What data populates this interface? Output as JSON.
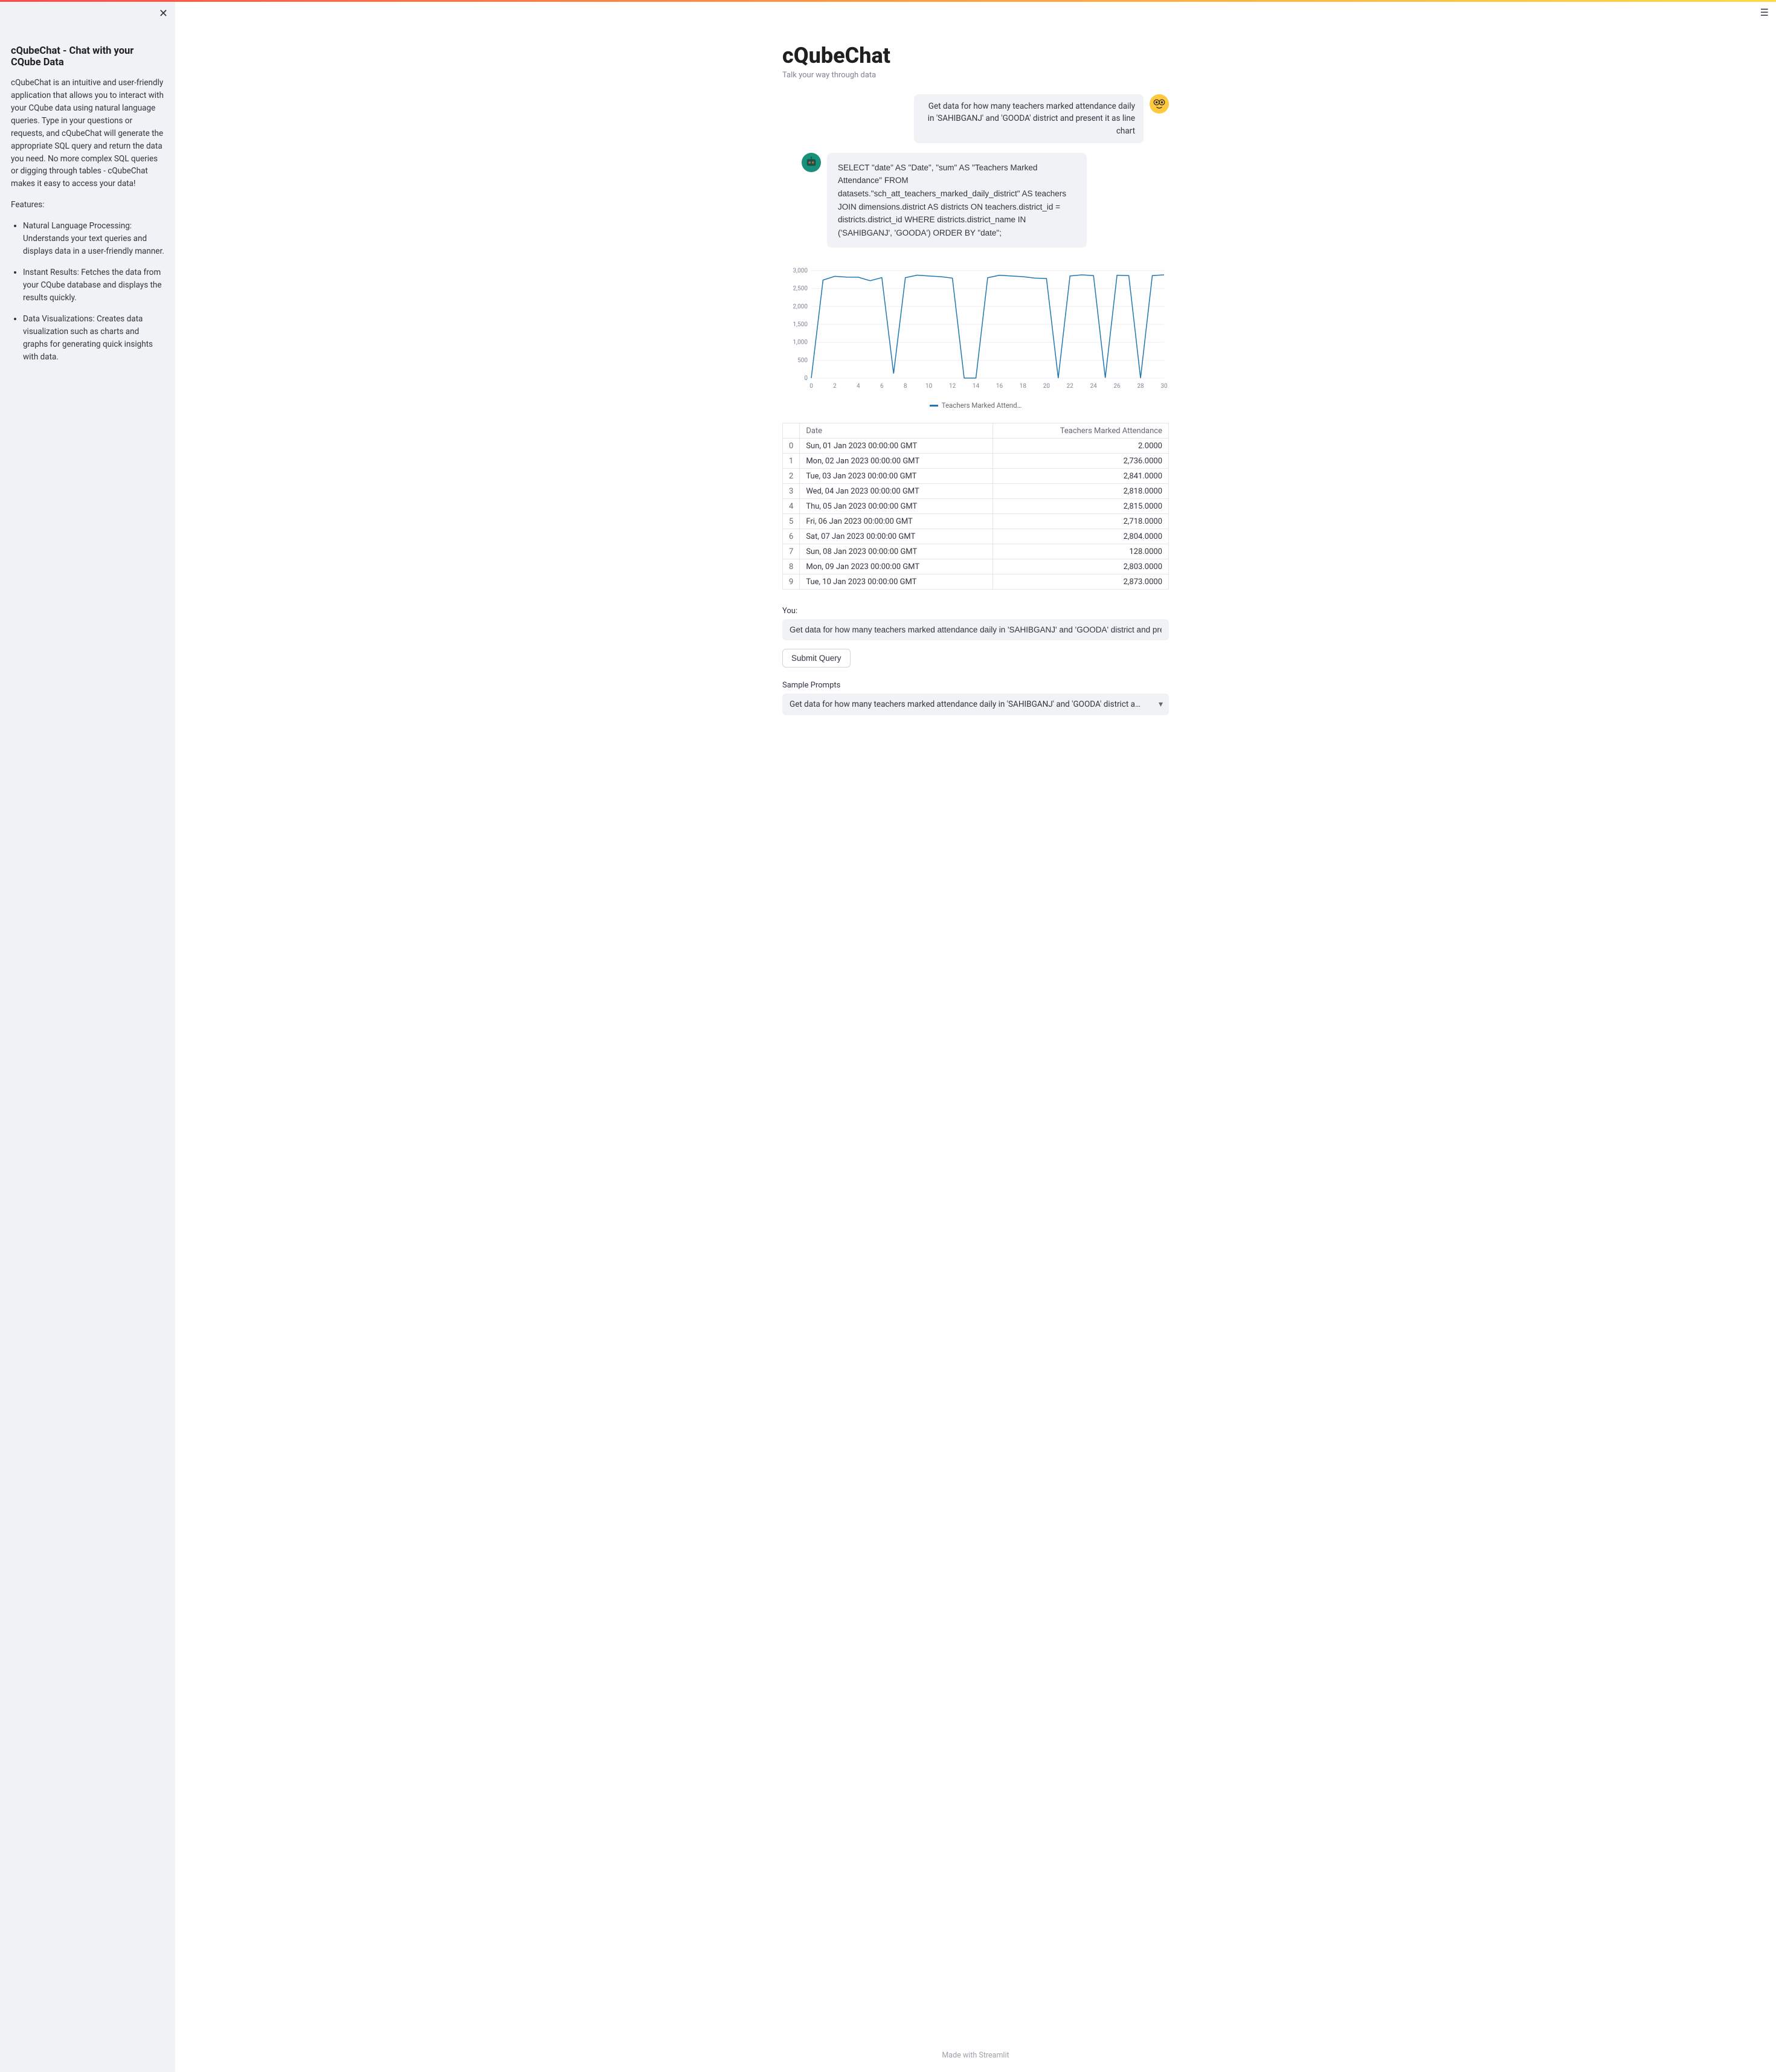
{
  "sidebar": {
    "title": "cQubeChat - Chat with your CQube Data",
    "intro": "cQubeChat is an intuitive and user-friendly application that allows you to interact with your CQube data using natural language queries. Type in your questions or requests, and cQubeChat will generate the appropriate SQL query and return the data you need. No more complex SQL queries or digging through tables - cQubeChat makes it easy to access your data!",
    "features_label": "Features:",
    "features": [
      "Natural Language Processing: Understands your text queries and displays data in a user-friendly manner.",
      "Instant Results: Fetches the data from your CQube database and displays the results quickly.",
      "Data Visualizations: Creates data visualization such as charts and graphs for generating quick insights with data."
    ]
  },
  "main": {
    "title": "cQubeChat",
    "subtitle": "Talk your way through data"
  },
  "chat": {
    "user_message": "Get data for how many teachers marked attendance daily in 'SAHIBGANJ' and 'GOODA' district and present it as line chart",
    "bot_message": "SELECT \"date\" AS \"Date\", \"sum\" AS \"Teachers Marked Attendance\" FROM datasets.\"sch_att_teachers_marked_daily_district\" AS teachers JOIN dimensions.district AS districts ON teachers.district_id = districts.district_id WHERE districts.district_name IN ('SAHIBGANJ', 'GOODA') ORDER BY \"date\";"
  },
  "chart": {
    "type": "line",
    "line_color": "#1f77b4",
    "grid_color": "#eceef1",
    "axis_text_color": "#808495",
    "background_color": "#ffffff",
    "ylim": [
      0,
      3100
    ],
    "ytick_step": 500,
    "ytick_labels": [
      "0",
      "500",
      "1,000",
      "1,500",
      "2,000",
      "2,500",
      "3,000"
    ],
    "xlim": [
      0,
      30
    ],
    "xtick_step": 2,
    "xtick_labels": [
      "0",
      "2",
      "4",
      "6",
      "8",
      "10",
      "12",
      "14",
      "16",
      "18",
      "20",
      "22",
      "24",
      "26",
      "28",
      "30"
    ],
    "line_width": 1.5,
    "legend_label": "Teachers Marked Attend…",
    "values": [
      2,
      2736,
      2841,
      2818,
      2815,
      2718,
      2804,
      128,
      2803,
      2873,
      2850,
      2830,
      2790,
      2,
      2,
      2800,
      2870,
      2850,
      2830,
      2790,
      2780,
      2,
      2850,
      2880,
      2860,
      10,
      2870,
      2860,
      2,
      2860,
      2880
    ]
  },
  "table": {
    "columns": [
      "Date",
      "Teachers Marked Attendance"
    ],
    "rows": [
      [
        "0",
        "Sun, 01 Jan 2023 00:00:00 GMT",
        "2.0000"
      ],
      [
        "1",
        "Mon, 02 Jan 2023 00:00:00 GMT",
        "2,736.0000"
      ],
      [
        "2",
        "Tue, 03 Jan 2023 00:00:00 GMT",
        "2,841.0000"
      ],
      [
        "3",
        "Wed, 04 Jan 2023 00:00:00 GMT",
        "2,818.0000"
      ],
      [
        "4",
        "Thu, 05 Jan 2023 00:00:00 GMT",
        "2,815.0000"
      ],
      [
        "5",
        "Fri, 06 Jan 2023 00:00:00 GMT",
        "2,718.0000"
      ],
      [
        "6",
        "Sat, 07 Jan 2023 00:00:00 GMT",
        "2,804.0000"
      ],
      [
        "7",
        "Sun, 08 Jan 2023 00:00:00 GMT",
        "128.0000"
      ],
      [
        "8",
        "Mon, 09 Jan 2023 00:00:00 GMT",
        "2,803.0000"
      ],
      [
        "9",
        "Tue, 10 Jan 2023 00:00:00 GMT",
        "2,873.0000"
      ]
    ]
  },
  "input": {
    "label": "You:",
    "value": "Get data for how many teachers marked attendance daily in 'SAHIBGANJ' and 'GOODA' district and pres",
    "submit_label": "Submit Query"
  },
  "prompts": {
    "label": "Sample Prompts",
    "selected": "Get data for how many teachers marked attendance daily in 'SAHIBGANJ' and 'GOODA' district a…"
  },
  "footer": {
    "made_with": "Made with ",
    "brand": "Streamlit"
  }
}
